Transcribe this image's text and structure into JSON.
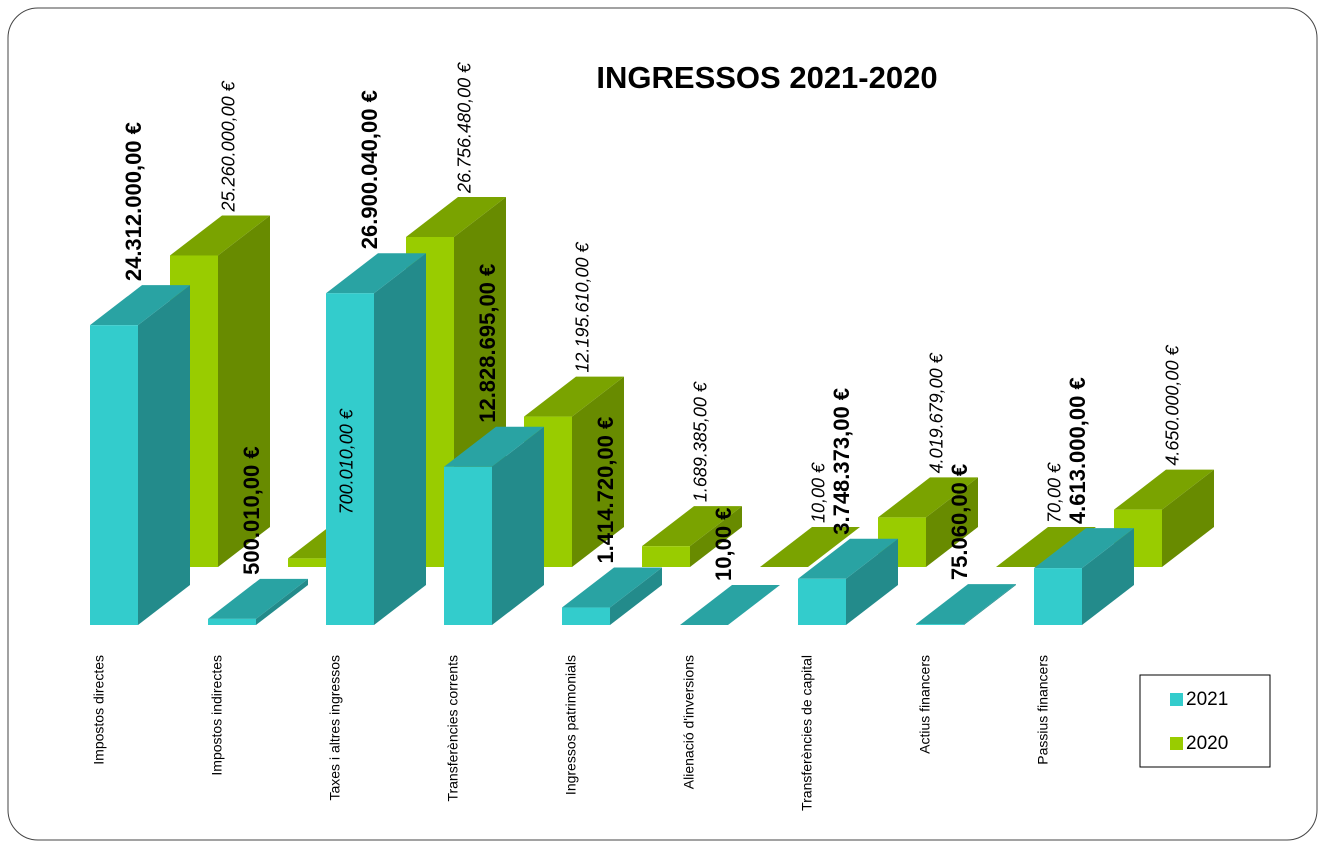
{
  "chart_data": {
    "type": "bar3d",
    "title": "INGRESSOS 2021-2020",
    "categories": [
      "Impostos directes",
      "Impostos indirectes",
      "Taxes i altres ingressos",
      "Transferències corrents",
      "Ingressos patrimonials",
      "Alienació d'inversions",
      "Transferències de capital",
      "Actius financers",
      "Passius financers"
    ],
    "series": [
      {
        "name": "2021",
        "color": "#33cccc",
        "values": [
          24312000,
          500010,
          26900040,
          12828695,
          1414720,
          10,
          3748373,
          75060,
          4613000
        ],
        "value_labels": [
          "24.312.000,00 €",
          "500.010,00 €",
          "26.900.040,00 €",
          "12.828.695,00 €",
          "1.414.720,00 €",
          "10,00 €",
          "3.748.373,00 €",
          "75.060,00 €",
          "4.613.000,00 €"
        ]
      },
      {
        "name": "2020",
        "color": "#99cc00",
        "values": [
          25260000,
          700010,
          26756480,
          12195610,
          1689385,
          10,
          4019679,
          70,
          4650000
        ],
        "value_labels": [
          "25.260.000,00 €",
          "700.010,00 €",
          "26.756.480,00 €",
          "12.195.610,00 €",
          "1.689.385,00 €",
          "10,00 €",
          "4.019.679,00 €",
          "70,00 €",
          "4.650.000,00 €"
        ]
      }
    ],
    "ylim": [
      0,
      30000000
    ],
    "legend": "bottom-right"
  }
}
